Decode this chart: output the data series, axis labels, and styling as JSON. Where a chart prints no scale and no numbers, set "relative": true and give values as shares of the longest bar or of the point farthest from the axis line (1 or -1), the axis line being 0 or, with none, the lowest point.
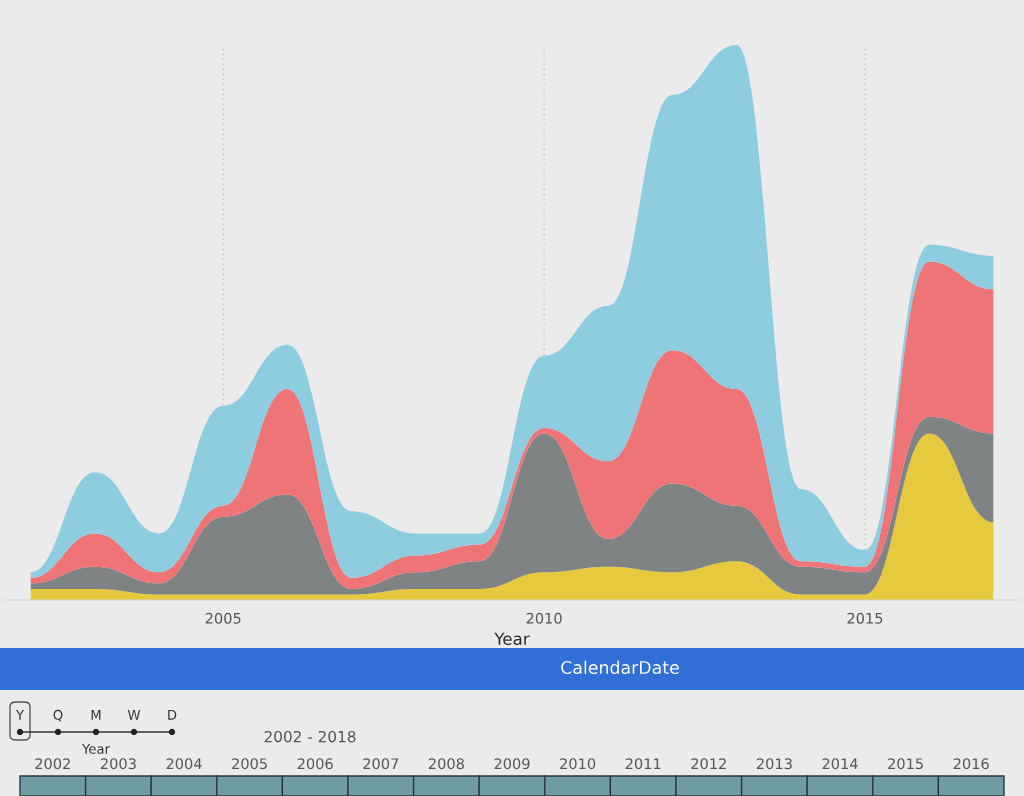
{
  "chart_data": {
    "type": "area",
    "stacked": true,
    "relative": true,
    "xlabel": "Year",
    "x": [
      2002,
      2003,
      2004,
      2005,
      2006,
      2007,
      2008,
      2009,
      2010,
      2011,
      2012,
      2013,
      2014,
      2015,
      2016,
      2017
    ],
    "xlim": [
      2001.6,
      2017.4
    ],
    "xticks": [
      2005,
      2010,
      2015
    ],
    "grid": "x",
    "series": [
      {
        "color": "#e6c93c",
        "values": [
          0.02,
          0.02,
          0.01,
          0.01,
          0.01,
          0.01,
          0.02,
          0.02,
          0.05,
          0.06,
          0.05,
          0.07,
          0.01,
          0.01,
          0.3,
          0.14
        ]
      },
      {
        "color": "#7f8384",
        "values": [
          0.01,
          0.04,
          0.02,
          0.14,
          0.18,
          0.01,
          0.03,
          0.05,
          0.25,
          0.05,
          0.16,
          0.1,
          0.05,
          0.04,
          0.03,
          0.16
        ]
      },
      {
        "color": "#ee7478",
        "values": [
          0.01,
          0.06,
          0.02,
          0.02,
          0.19,
          0.02,
          0.03,
          0.03,
          0.01,
          0.14,
          0.24,
          0.21,
          0.01,
          0.01,
          0.28,
          0.26
        ]
      },
      {
        "color": "#8ecde0",
        "values": [
          0.01,
          0.11,
          0.07,
          0.18,
          0.08,
          0.12,
          0.04,
          0.02,
          0.13,
          0.28,
          0.46,
          0.62,
          0.13,
          0.03,
          0.03,
          0.06
        ]
      }
    ],
    "annotations": [
      "CalendarDate",
      "Y",
      "Q",
      "M",
      "W",
      "D",
      "Year",
      "2002 - 2018",
      "2002",
      "2003",
      "2004",
      "2005",
      "2006",
      "2007",
      "2008",
      "2009",
      "2010",
      "2011",
      "2012",
      "2013",
      "2014",
      "2015",
      "2016"
    ]
  }
}
